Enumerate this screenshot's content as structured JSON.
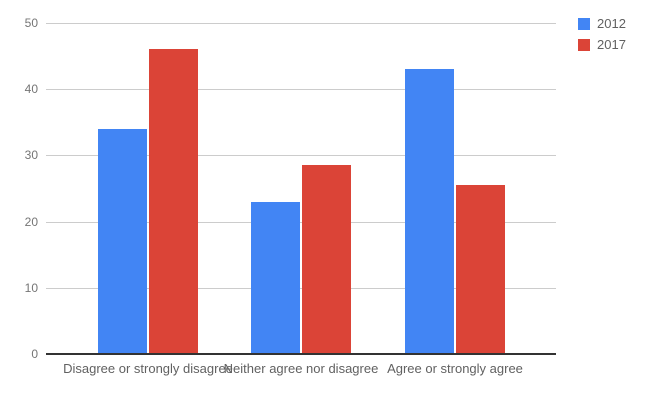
{
  "chart_data": {
    "type": "bar",
    "title": "",
    "xlabel": "",
    "ylabel": "",
    "categories": [
      "Disagree or strongly disagree",
      "Neither agree nor disagree",
      "Agree or strongly agree"
    ],
    "series": [
      {
        "name": "2012",
        "color": "#4285F4",
        "values": [
          34,
          23,
          43
        ]
      },
      {
        "name": "2017",
        "color": "#DB4437",
        "values": [
          46,
          28.5,
          25.5
        ]
      }
    ],
    "ylim": [
      0,
      50
    ],
    "yticks": [
      0,
      10,
      20,
      30,
      40,
      50
    ],
    "grid": true,
    "legend_position": "top-right"
  },
  "colors": {
    "background": "#ffffff",
    "gridline": "#cccccc",
    "axis_line": "#333333",
    "tick_text": "#757575",
    "category_text": "#616161",
    "legend_text": "#616161"
  }
}
